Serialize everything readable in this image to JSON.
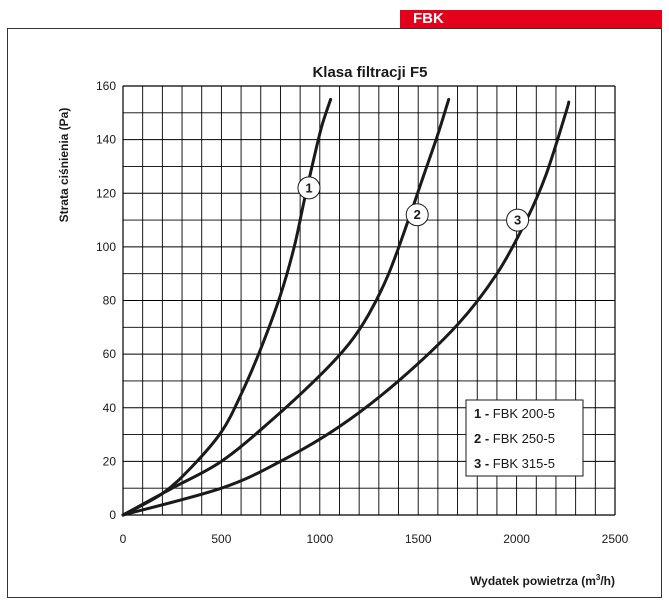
{
  "header": {
    "tab_label": "FBK"
  },
  "colors": {
    "accent": "#e3001b",
    "curve": "#1a1a1a",
    "grid": "#000000"
  },
  "chart_data": {
    "type": "line",
    "title": "Klasa filtracji F5",
    "xlabel_main": "Wydatek powietrza (m",
    "xlabel_sup": "3",
    "xlabel_end": "/h)",
    "ylabel": "Strata ciśnienia (Pa)",
    "xlim": [
      0,
      2500
    ],
    "ylim": [
      0,
      160
    ],
    "x_ticks": [
      "0",
      "500",
      "1000",
      "1500",
      "2000",
      "2500"
    ],
    "y_ticks": [
      "0",
      "20",
      "40",
      "60",
      "80",
      "100",
      "120",
      "140",
      "160"
    ],
    "grid": true,
    "series": [
      {
        "id": "1",
        "legend_num": "1 -",
        "legend_text": " FBK 200-5",
        "label_at": [
          945,
          122
        ],
        "points": [
          [
            0,
            0
          ],
          [
            200,
            8
          ],
          [
            350,
            18
          ],
          [
            500,
            31
          ],
          [
            600,
            45
          ],
          [
            700,
            62
          ],
          [
            800,
            82
          ],
          [
            870,
            100
          ],
          [
            920,
            117
          ],
          [
            970,
            133
          ],
          [
            1010,
            145
          ],
          [
            1055,
            155
          ]
        ]
      },
      {
        "id": "2",
        "legend_num": "2 -",
        "legend_text": " FBK 250-5",
        "label_at": [
          1495,
          112
        ],
        "points": [
          [
            0,
            0
          ],
          [
            250,
            10
          ],
          [
            500,
            20
          ],
          [
            750,
            35
          ],
          [
            1000,
            52
          ],
          [
            1150,
            64
          ],
          [
            1250,
            75
          ],
          [
            1350,
            90
          ],
          [
            1450,
            110
          ],
          [
            1520,
            125
          ],
          [
            1600,
            142
          ],
          [
            1655,
            155
          ]
        ]
      },
      {
        "id": "3",
        "legend_num": "3 -",
        "legend_text": " FBK 315-5",
        "label_at": [
          2005,
          110
        ],
        "points": [
          [
            0,
            0
          ],
          [
            500,
            10
          ],
          [
            800,
            20
          ],
          [
            1100,
            33
          ],
          [
            1400,
            50
          ],
          [
            1700,
            71
          ],
          [
            1900,
            90
          ],
          [
            2050,
            110
          ],
          [
            2150,
            127
          ],
          [
            2250,
            150
          ],
          [
            2265,
            154
          ]
        ]
      }
    ],
    "legend_position": "bottom-right"
  }
}
